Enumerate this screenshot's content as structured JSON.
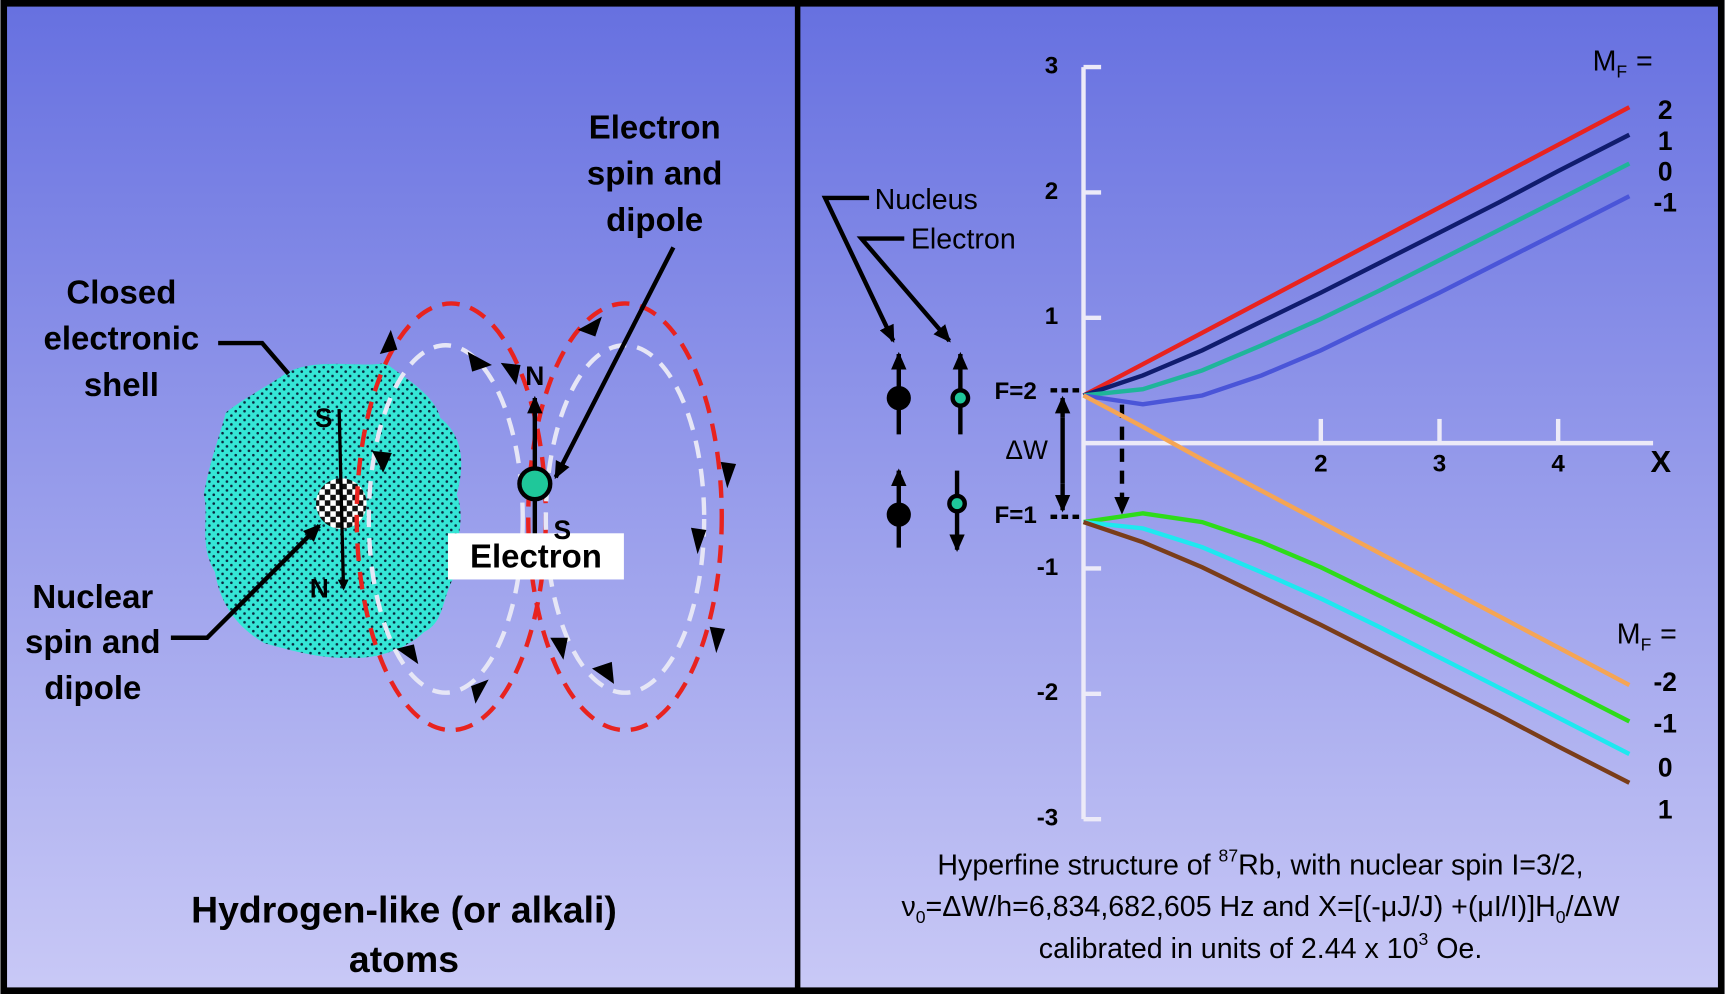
{
  "left": {
    "shell_label": [
      "Closed",
      "electronic",
      "shell"
    ],
    "nuclear_label": [
      "Nuclear",
      "spin and",
      "dipole"
    ],
    "electron_spin_label": [
      "Electron",
      "spin and",
      "dipole"
    ],
    "electron_label": "Electron",
    "nucleus_top_pole": "S",
    "nucleus_bottom_pole": "N",
    "electron_top_pole": "N",
    "electron_bottom_pole": "S",
    "caption": [
      "Hydrogen-like (or alkali)",
      "atoms"
    ]
  },
  "chart_data": {
    "type": "line",
    "nucleus_label": "Nucleus",
    "electron_label": "Electron",
    "upper_level_label": "F=2",
    "lower_level_label": "F=1",
    "splitting_label": "ΔW",
    "x_label": "X",
    "legend_title": {
      "text": "M",
      "subscript": "F",
      "suffix": "="
    },
    "x": [
      0,
      0.5,
      1,
      1.5,
      2,
      2.5,
      3,
      3.5,
      4,
      4.6
    ],
    "series": [
      {
        "name": "2",
        "color": "#e8231f",
        "values": [
          0.38,
          0.63,
          0.88,
          1.13,
          1.38,
          1.63,
          1.88,
          2.13,
          2.38,
          2.68
        ]
      },
      {
        "name": "1",
        "color": "#101c6e",
        "values": [
          0.38,
          0.54,
          0.74,
          0.97,
          1.2,
          1.44,
          1.68,
          1.92,
          2.17,
          2.46
        ]
      },
      {
        "name": "0",
        "color": "#1fb59a",
        "values": [
          0.38,
          0.43,
          0.58,
          0.78,
          0.99,
          1.22,
          1.46,
          1.7,
          1.94,
          2.23
        ]
      },
      {
        "name": "-1",
        "color": "#4a55d8",
        "values": [
          0.38,
          0.31,
          0.38,
          0.54,
          0.74,
          0.97,
          1.2,
          1.44,
          1.68,
          1.97
        ]
      },
      {
        "name": "-2",
        "color": "#f5a555",
        "values": [
          0.38,
          0.13,
          -0.13,
          -0.38,
          -0.63,
          -0.88,
          -1.13,
          -1.38,
          -1.63,
          -1.93
        ]
      },
      {
        "name": "-1",
        "color": "#2edc1a",
        "values": [
          -0.63,
          -0.56,
          -0.63,
          -0.79,
          -0.99,
          -1.22,
          -1.45,
          -1.69,
          -1.93,
          -2.22
        ]
      },
      {
        "name": "0",
        "color": "#1ee8f0",
        "values": [
          -0.63,
          -0.68,
          -0.83,
          -1.03,
          -1.24,
          -1.47,
          -1.71,
          -1.95,
          -2.19,
          -2.48
        ]
      },
      {
        "name": "1",
        "color": "#7a3d1a",
        "values": [
          -0.63,
          -0.79,
          -0.99,
          -1.22,
          -1.45,
          -1.69,
          -1.93,
          -2.17,
          -2.42,
          -2.71
        ]
      }
    ],
    "xlim": [
      0,
      4.8
    ],
    "ylim": [
      -3,
      3
    ],
    "xticks": [
      2,
      3,
      4
    ],
    "yticks": [
      -3,
      -2,
      -1,
      1,
      2,
      3
    ],
    "caption": [
      [
        {
          "text": "Hyperfine structure of "
        },
        {
          "text": "87",
          "style": "sup"
        },
        {
          "text": "Rb, with nuclear spin I=3/2,"
        }
      ],
      [
        {
          "text": "ν"
        },
        {
          "text": "0",
          "style": "sub"
        },
        {
          "text": "=ΔW/h=6,834,682,605 Hz and X=[(-μJ/J) +(μI/I)]H"
        },
        {
          "text": "0",
          "style": "sub"
        },
        {
          "text": "/ΔW"
        }
      ],
      [
        {
          "text": "calibrated in units of 2.44 x 10"
        },
        {
          "text": "3",
          "style": "sup"
        },
        {
          "text": " Oe."
        }
      ]
    ]
  }
}
